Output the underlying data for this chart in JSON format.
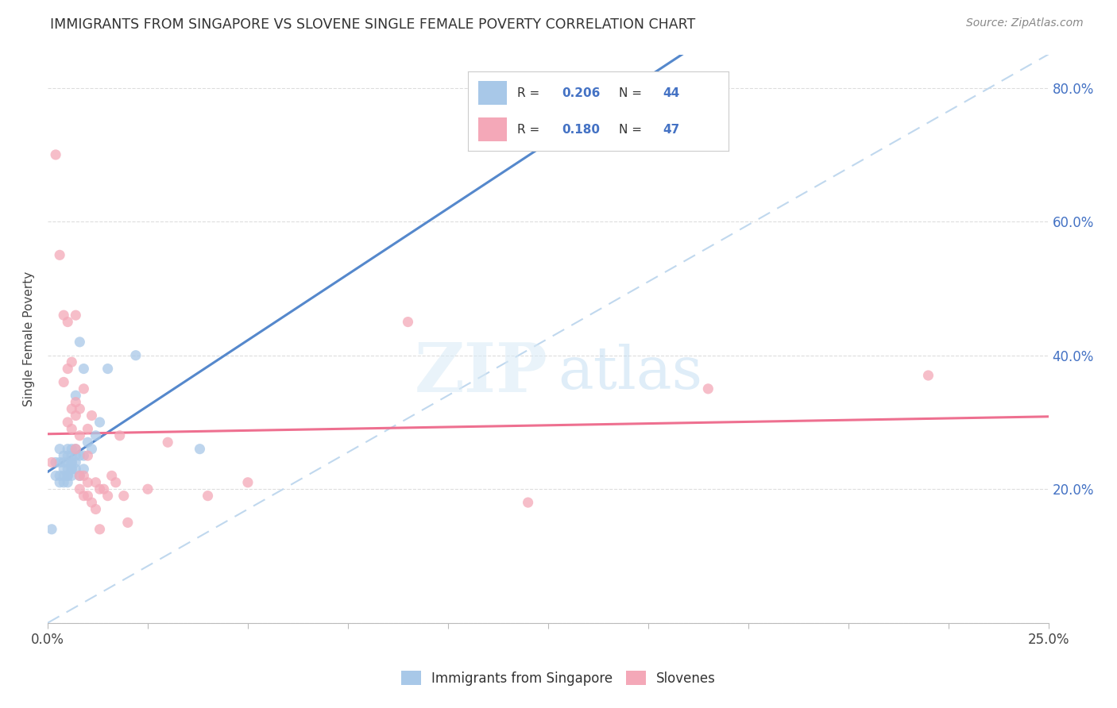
{
  "title": "IMMIGRANTS FROM SINGAPORE VS SLOVENE SINGLE FEMALE POVERTY CORRELATION CHART",
  "source": "Source: ZipAtlas.com",
  "ylabel": "Single Female Poverty",
  "legend_label1": "Immigrants from Singapore",
  "legend_label2": "Slovenes",
  "r1": 0.206,
  "n1": 44,
  "r2": 0.18,
  "n2": 47,
  "xlim": [
    0.0,
    0.25
  ],
  "ylim": [
    0.0,
    0.85
  ],
  "color_blue": "#a8c8e8",
  "color_pink": "#f4a8b8",
  "trend_blue": "#5588cc",
  "trend_pink": "#ee7090",
  "diagonal_color": "#c0d8ee",
  "watermark_zip": "ZIP",
  "watermark_atlas": "atlas",
  "singapore_x": [
    0.001,
    0.002,
    0.002,
    0.003,
    0.003,
    0.003,
    0.003,
    0.004,
    0.004,
    0.004,
    0.004,
    0.004,
    0.005,
    0.005,
    0.005,
    0.005,
    0.005,
    0.005,
    0.005,
    0.006,
    0.006,
    0.006,
    0.006,
    0.006,
    0.006,
    0.006,
    0.007,
    0.007,
    0.007,
    0.007,
    0.007,
    0.008,
    0.008,
    0.008,
    0.009,
    0.009,
    0.009,
    0.01,
    0.011,
    0.012,
    0.013,
    0.015,
    0.022,
    0.038
  ],
  "singapore_y": [
    0.14,
    0.22,
    0.24,
    0.21,
    0.22,
    0.24,
    0.26,
    0.21,
    0.22,
    0.23,
    0.24,
    0.25,
    0.21,
    0.22,
    0.22,
    0.23,
    0.24,
    0.25,
    0.26,
    0.22,
    0.23,
    0.23,
    0.24,
    0.24,
    0.25,
    0.26,
    0.23,
    0.24,
    0.25,
    0.26,
    0.34,
    0.22,
    0.25,
    0.42,
    0.23,
    0.25,
    0.38,
    0.27,
    0.26,
    0.28,
    0.3,
    0.38,
    0.4,
    0.26
  ],
  "slovene_x": [
    0.001,
    0.002,
    0.003,
    0.004,
    0.004,
    0.005,
    0.005,
    0.005,
    0.006,
    0.006,
    0.006,
    0.007,
    0.007,
    0.007,
    0.007,
    0.008,
    0.008,
    0.008,
    0.008,
    0.009,
    0.009,
    0.009,
    0.01,
    0.01,
    0.01,
    0.01,
    0.011,
    0.011,
    0.012,
    0.012,
    0.013,
    0.013,
    0.014,
    0.015,
    0.016,
    0.017,
    0.018,
    0.019,
    0.02,
    0.025,
    0.03,
    0.04,
    0.05,
    0.09,
    0.12,
    0.165,
    0.22
  ],
  "slovene_y": [
    0.24,
    0.7,
    0.55,
    0.36,
    0.46,
    0.3,
    0.38,
    0.45,
    0.29,
    0.32,
    0.39,
    0.26,
    0.31,
    0.33,
    0.46,
    0.2,
    0.22,
    0.28,
    0.32,
    0.19,
    0.22,
    0.35,
    0.19,
    0.21,
    0.25,
    0.29,
    0.18,
    0.31,
    0.17,
    0.21,
    0.14,
    0.2,
    0.2,
    0.19,
    0.22,
    0.21,
    0.28,
    0.19,
    0.15,
    0.2,
    0.27,
    0.19,
    0.21,
    0.45,
    0.18,
    0.35,
    0.37
  ]
}
